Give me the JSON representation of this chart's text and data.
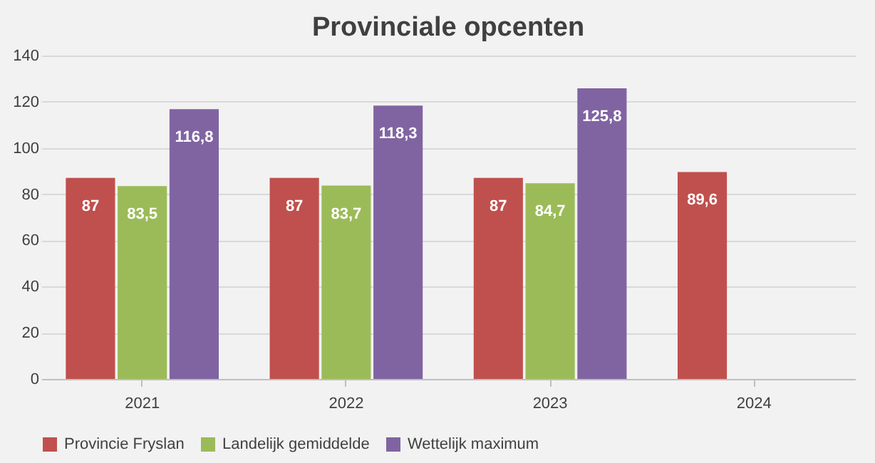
{
  "chart_data": {
    "type": "bar",
    "title": "Provinciale opcenten",
    "categories": [
      "2021",
      "2022",
      "2023",
      "2024"
    ],
    "series": [
      {
        "name": "Provincie Fryslan",
        "color": "#c0504d",
        "values": [
          87,
          87,
          87,
          89.6
        ],
        "value_labels": [
          "87",
          "87",
          "87",
          "89,6"
        ]
      },
      {
        "name": "Landelijk gemiddelde",
        "color": "#9bbb59",
        "values": [
          83.5,
          83.7,
          84.7,
          null
        ],
        "value_labels": [
          "83,5",
          "83,7",
          "84,7",
          null
        ]
      },
      {
        "name": "Wettelijk maximum",
        "color": "#8064a2",
        "values": [
          116.8,
          118.3,
          125.8,
          null
        ],
        "value_labels": [
          "116,8",
          "118,3",
          "125,8",
          null
        ]
      }
    ],
    "ylim": [
      0,
      140
    ],
    "yticks": [
      0,
      20,
      40,
      60,
      80,
      100,
      120,
      140
    ],
    "grid": "y",
    "legend": "bottom"
  }
}
